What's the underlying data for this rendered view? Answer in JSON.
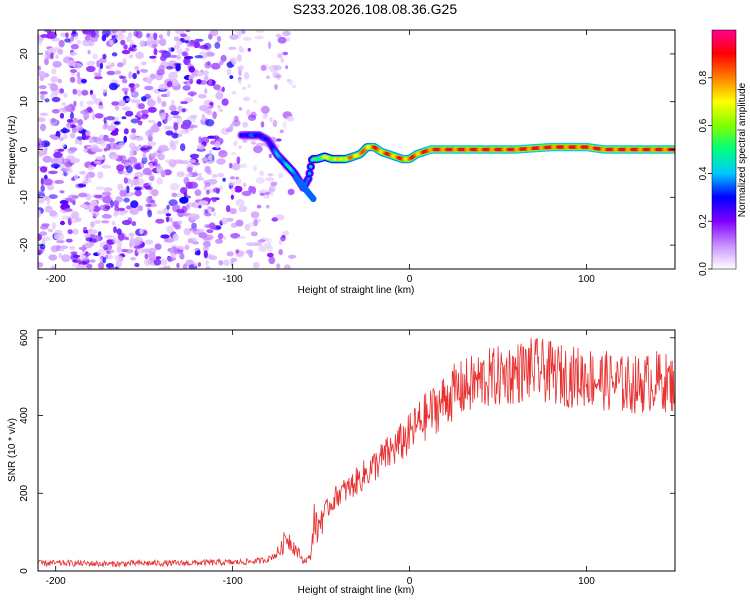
{
  "title": "S233.2026.108.08.36.G25",
  "chart_data": [
    {
      "type": "heatmap",
      "name": "spectrogram",
      "xlabel": "Height of straight line (km)",
      "ylabel": "Frequency (Hz)",
      "xlim": [
        -210,
        150
      ],
      "ylim": [
        -25,
        25
      ],
      "x_ticks": [
        -200,
        -100,
        0,
        100
      ],
      "y_ticks": [
        -20,
        -10,
        0,
        10,
        20
      ],
      "colorbar": {
        "label": "Normalized spectral amplitude",
        "range": [
          0,
          1
        ],
        "ticks": [
          0.0,
          0.2,
          0.4,
          0.6,
          0.8
        ],
        "tick_labels": [
          "0.0",
          "0.2",
          "0.4",
          "0.6",
          "0.8"
        ],
        "colors": [
          "#ffffff",
          "#c890ff",
          "#8000ff",
          "#0000ff",
          "#00c8ff",
          "#00ff80",
          "#80ff00",
          "#ffff00",
          "#ff8000",
          "#ff0000",
          "#ff0090"
        ]
      },
      "signal_track": {
        "x": [
          -95,
          -90,
          -85,
          -80,
          -75,
          -70,
          -65,
          -60,
          -57,
          -55,
          -52,
          -48,
          -44,
          -40,
          -36,
          -32,
          -28,
          -24,
          -20,
          -16,
          -12,
          -8,
          -4,
          0,
          4,
          8,
          12,
          20,
          40,
          60,
          80,
          90,
          100,
          110,
          120,
          150
        ],
        "y": [
          3,
          3,
          3,
          2,
          -1,
          -3,
          -5,
          -8,
          -6,
          -2,
          -2,
          -1.5,
          -2,
          -2,
          -2,
          -1.5,
          -1,
          0.5,
          0.5,
          -0.5,
          -1,
          -1.5,
          -2,
          -2,
          -1,
          -0.5,
          0,
          0,
          0,
          0,
          0.5,
          0.5,
          0.5,
          0,
          0,
          0
        ],
        "amplitude": [
          0.3,
          0.35,
          0.35,
          0.3,
          0.4,
          0.45,
          0.45,
          0.4,
          0.45,
          0.5,
          0.6,
          0.7,
          0.75,
          0.75,
          0.8,
          0.85,
          0.85,
          0.85,
          0.9,
          0.9,
          0.9,
          0.9,
          0.9,
          0.9,
          0.9,
          0.92,
          0.95,
          0.95,
          0.95,
          0.95,
          0.95,
          0.95,
          0.95,
          0.95,
          0.95,
          0.95
        ]
      },
      "noise_region": {
        "x_range": [
          -210,
          -80
        ],
        "amplitude_range": [
          0.05,
          0.3
        ]
      }
    },
    {
      "type": "line",
      "name": "snr",
      "xlabel": "Height of straight line (km)",
      "ylabel": "SNR (10 * v/v)",
      "xlim": [
        -210,
        150
      ],
      "ylim": [
        0,
        620
      ],
      "x_ticks": [
        -200,
        -100,
        0,
        100
      ],
      "y_ticks": [
        0,
        200,
        400,
        600
      ],
      "color": "#e83030",
      "series": [
        {
          "name": "SNR",
          "x": [
            -210,
            -190,
            -170,
            -150,
            -130,
            -110,
            -100,
            -90,
            -85,
            -80,
            -75,
            -72,
            -70,
            -68,
            -65,
            -62,
            -60,
            -58,
            -56,
            -55,
            -54,
            -53,
            -52,
            -50,
            -45,
            -40,
            -35,
            -30,
            -25,
            -20,
            -15,
            -10,
            -5,
            0,
            5,
            10,
            15,
            20,
            25,
            30,
            40,
            50,
            60,
            70,
            80,
            90,
            100,
            110,
            120,
            130,
            140,
            150
          ],
          "y": [
            20,
            20,
            18,
            20,
            20,
            22,
            22,
            24,
            26,
            30,
            45,
            60,
            90,
            80,
            60,
            40,
            25,
            30,
            35,
            80,
            140,
            120,
            100,
            140,
            170,
            200,
            210,
            230,
            250,
            270,
            290,
            310,
            330,
            350,
            380,
            400,
            420,
            440,
            460,
            470,
            490,
            500,
            510,
            520,
            510,
            500,
            500,
            490,
            480,
            480,
            490,
            480
          ]
        }
      ]
    }
  ]
}
